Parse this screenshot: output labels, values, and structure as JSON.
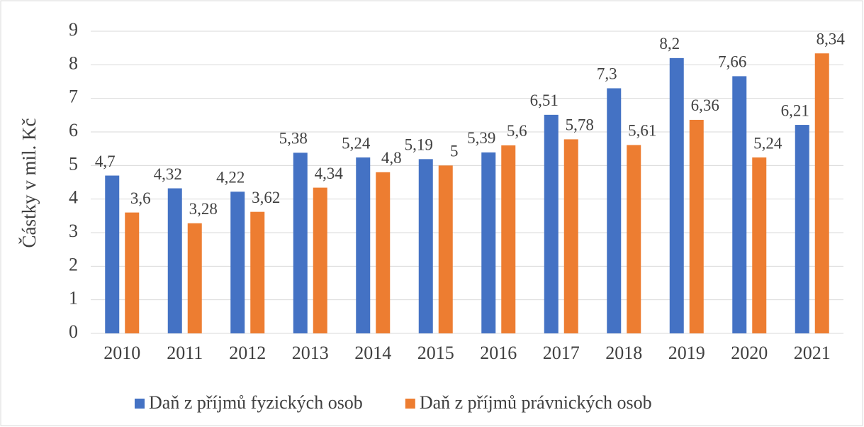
{
  "chart_data": {
    "type": "bar",
    "y_label": "Částky v mil. Kč",
    "categories": [
      "2010",
      "2011",
      "2012",
      "2013",
      "2014",
      "2015",
      "2016",
      "2017",
      "2018",
      "2019",
      "2020",
      "2021"
    ],
    "series": [
      {
        "name": "Daň z příjmů fyzických osob",
        "color": "#4472c4",
        "values": [
          4.7,
          4.32,
          4.22,
          5.38,
          5.24,
          5.19,
          5.39,
          6.51,
          7.3,
          8.2,
          7.66,
          6.21
        ],
        "value_labels": [
          "4,7",
          "4,32",
          "4,22",
          "5,38",
          "5,24",
          "5,19",
          "5,39",
          "6,51",
          "7,3",
          "8,2",
          "7,66",
          "6,21"
        ]
      },
      {
        "name": "Daň z příjmů právnických osob",
        "color": "#ed7d31",
        "values": [
          3.6,
          3.28,
          3.62,
          4.34,
          4.8,
          5,
          5.6,
          5.78,
          5.61,
          6.36,
          5.24,
          8.34
        ],
        "value_labels": [
          "3,6",
          "3,28",
          "3,62",
          "4,34",
          "4,8",
          "5",
          "5,6",
          "5,78",
          "5,61",
          "6,36",
          "5,24",
          "8,34"
        ]
      }
    ],
    "ylim": [
      0,
      9
    ],
    "yticks": [
      0,
      1,
      2,
      3,
      4,
      5,
      6,
      7,
      8,
      9
    ],
    "grid": true,
    "legend": "bottom"
  }
}
